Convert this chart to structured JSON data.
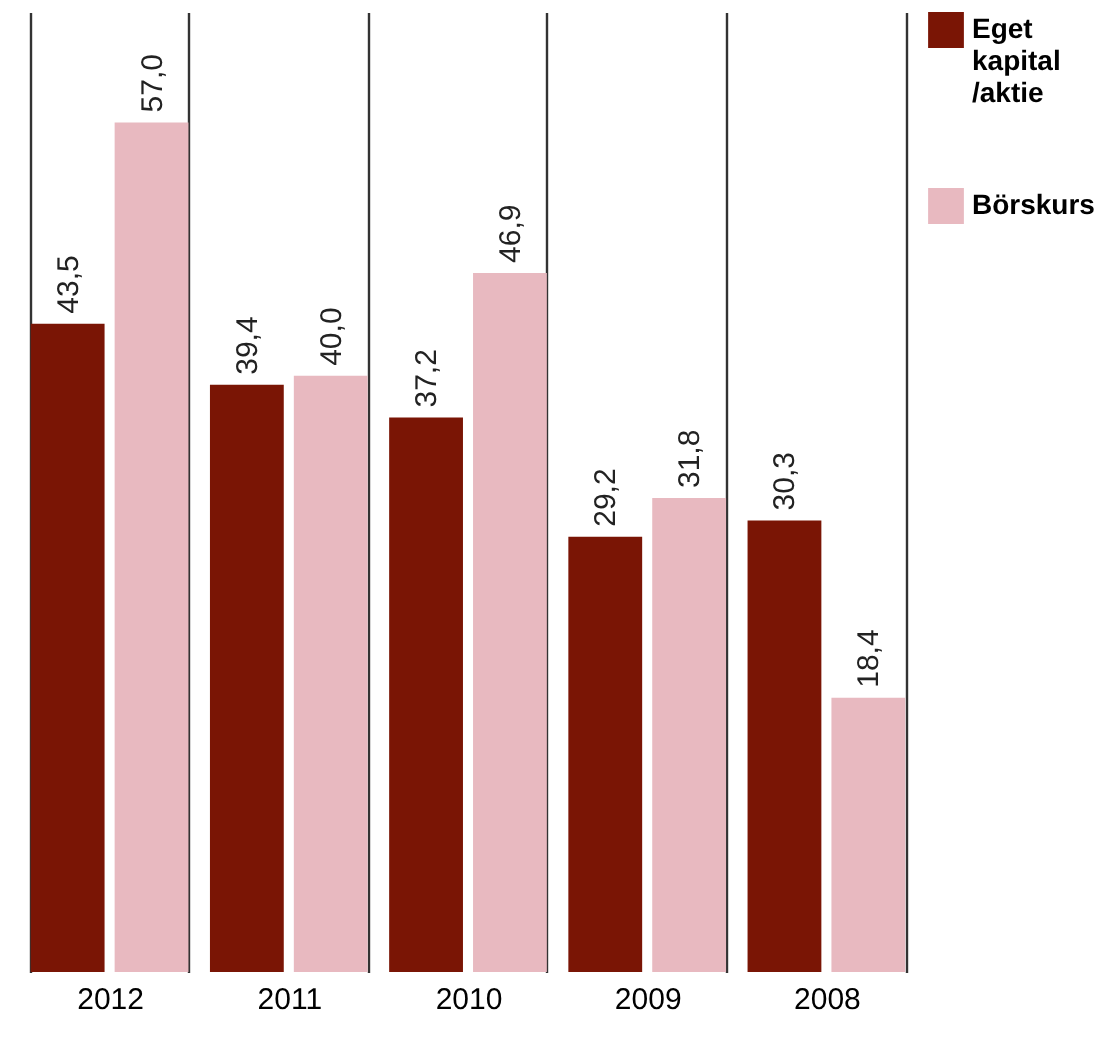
{
  "chart_data": {
    "type": "bar",
    "categories": [
      "2012",
      "2011",
      "2010",
      "2009",
      "2008"
    ],
    "series": [
      {
        "name": "Eget kapital /aktie",
        "color": "#7a1505",
        "values": [
          43.5,
          39.4,
          37.2,
          29.2,
          30.3
        ],
        "value_labels": [
          "43,5",
          "39,4",
          "37,2",
          "29,2",
          "30,3"
        ]
      },
      {
        "name": "Börskurs",
        "color": "#e8b9c0",
        "values": [
          57.0,
          40.0,
          46.9,
          31.8,
          18.4
        ],
        "value_labels": [
          "57,0",
          "40,0",
          "46,9",
          "31,8",
          "18,4"
        ]
      }
    ],
    "grid": "x",
    "legend": "right"
  }
}
